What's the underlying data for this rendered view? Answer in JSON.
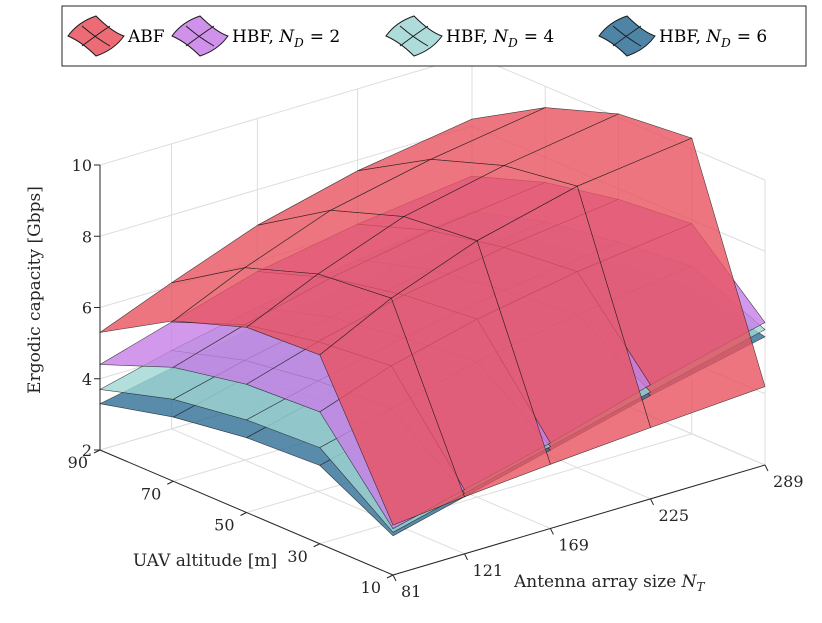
{
  "chart_data": {
    "type": "surface3d",
    "title": "",
    "xlabel": "Antenna array size N_T",
    "xlabel_main": "Antenna array size ",
    "xlabel_sym": "N",
    "xlabel_sub": "T",
    "ylabel": "UAV altitude [m]",
    "zlabel": "Ergodic capacity [Gbps]",
    "x_ticks": [
      81,
      121,
      169,
      225,
      289
    ],
    "x_tick_labels": [
      "81",
      "121",
      "169",
      "225",
      "289"
    ],
    "y_ticks": [
      10,
      30,
      50,
      70,
      90
    ],
    "y_tick_labels": [
      "10",
      "30",
      "50",
      "70",
      "90"
    ],
    "z_ticks": [
      2,
      4,
      6,
      8,
      10
    ],
    "z_tick_labels": [
      "2",
      "4",
      "6",
      "8",
      "10"
    ],
    "zlim": [
      2,
      10
    ],
    "grid": true,
    "legend_position": "top",
    "series": [
      {
        "name": "ABF",
        "label_text": "ABF",
        "label_math": "",
        "color": "#e8525f",
        "points": [
          {
            "x": 81,
            "y": 90,
            "z": 5.3
          },
          {
            "x": 121,
            "y": 90,
            "z": 6.1
          },
          {
            "x": 169,
            "y": 90,
            "z": 7.0
          },
          {
            "x": 225,
            "y": 90,
            "z": 7.7
          },
          {
            "x": 289,
            "y": 90,
            "z": 8.2
          },
          {
            "x": 81,
            "y": 70,
            "z": 6.5
          },
          {
            "x": 121,
            "y": 70,
            "z": 7.4
          },
          {
            "x": 169,
            "y": 70,
            "z": 8.3
          },
          {
            "x": 225,
            "y": 70,
            "z": 8.9
          },
          {
            "x": 289,
            "y": 70,
            "z": 9.4
          },
          {
            "x": 81,
            "y": 50,
            "z": 7.2
          },
          {
            "x": 121,
            "y": 50,
            "z": 8.1
          },
          {
            "x": 169,
            "y": 50,
            "z": 9.0
          },
          {
            "x": 225,
            "y": 50,
            "z": 9.6
          },
          {
            "x": 289,
            "y": 50,
            "z": 10.1
          },
          {
            "x": 81,
            "y": 30,
            "z": 7.3
          },
          {
            "x": 121,
            "y": 30,
            "z": 8.3
          },
          {
            "x": 169,
            "y": 30,
            "z": 9.2
          },
          {
            "x": 225,
            "y": 30,
            "z": 9.9
          },
          {
            "x": 289,
            "y": 30,
            "z": 10.3
          },
          {
            "x": 81,
            "y": 10,
            "z": 3.4
          },
          {
            "x": 121,
            "y": 10,
            "z": 3.6
          },
          {
            "x": 169,
            "y": 10,
            "z": 3.8
          },
          {
            "x": 225,
            "y": 10,
            "z": 4.0
          },
          {
            "x": 289,
            "y": 10,
            "z": 4.2
          }
        ]
      },
      {
        "name": "HBF, N_D = 2",
        "label_text": "HBF, ",
        "label_math": "= 2",
        "color": "#c77ee6",
        "points": [
          {
            "x": 81,
            "y": 90,
            "z": 4.4
          },
          {
            "x": 121,
            "y": 90,
            "z": 5.0
          },
          {
            "x": 169,
            "y": 90,
            "z": 5.7
          },
          {
            "x": 225,
            "y": 90,
            "z": 6.2
          },
          {
            "x": 289,
            "y": 90,
            "z": 6.6
          },
          {
            "x": 81,
            "y": 70,
            "z": 5.2
          },
          {
            "x": 121,
            "y": 70,
            "z": 5.8
          },
          {
            "x": 169,
            "y": 70,
            "z": 6.4
          },
          {
            "x": 225,
            "y": 70,
            "z": 6.9
          },
          {
            "x": 289,
            "y": 70,
            "z": 7.3
          },
          {
            "x": 81,
            "y": 50,
            "z": 5.6
          },
          {
            "x": 121,
            "y": 50,
            "z": 6.2
          },
          {
            "x": 169,
            "y": 50,
            "z": 6.8
          },
          {
            "x": 225,
            "y": 50,
            "z": 7.3
          },
          {
            "x": 289,
            "y": 50,
            "z": 7.7
          },
          {
            "x": 81,
            "y": 30,
            "z": 5.7
          },
          {
            "x": 121,
            "y": 30,
            "z": 6.4
          },
          {
            "x": 169,
            "y": 30,
            "z": 7.0
          },
          {
            "x": 225,
            "y": 30,
            "z": 7.5
          },
          {
            "x": 289,
            "y": 30,
            "z": 7.9
          },
          {
            "x": 81,
            "y": 10,
            "z": 3.3
          },
          {
            "x": 121,
            "y": 10,
            "z": 3.8
          },
          {
            "x": 169,
            "y": 10,
            "z": 4.4
          },
          {
            "x": 225,
            "y": 10,
            "z": 5.2
          },
          {
            "x": 289,
            "y": 10,
            "z": 6.0
          }
        ]
      },
      {
        "name": "HBF, N_D = 4",
        "label_text": "HBF, ",
        "label_math": "= 4",
        "color": "#9fd6d3",
        "points": [
          {
            "x": 81,
            "y": 90,
            "z": 3.7
          },
          {
            "x": 121,
            "y": 90,
            "z": 4.2
          },
          {
            "x": 169,
            "y": 90,
            "z": 4.7
          },
          {
            "x": 225,
            "y": 90,
            "z": 5.2
          },
          {
            "x": 289,
            "y": 90,
            "z": 5.6
          },
          {
            "x": 81,
            "y": 70,
            "z": 4.3
          },
          {
            "x": 121,
            "y": 70,
            "z": 4.8
          },
          {
            "x": 169,
            "y": 70,
            "z": 5.3
          },
          {
            "x": 225,
            "y": 70,
            "z": 5.8
          },
          {
            "x": 289,
            "y": 70,
            "z": 6.2
          },
          {
            "x": 81,
            "y": 50,
            "z": 4.6
          },
          {
            "x": 121,
            "y": 50,
            "z": 5.1
          },
          {
            "x": 169,
            "y": 50,
            "z": 5.6
          },
          {
            "x": 225,
            "y": 50,
            "z": 6.1
          },
          {
            "x": 289,
            "y": 50,
            "z": 6.5
          },
          {
            "x": 81,
            "y": 30,
            "z": 4.7
          },
          {
            "x": 121,
            "y": 30,
            "z": 5.2
          },
          {
            "x": 169,
            "y": 30,
            "z": 5.8
          },
          {
            "x": 225,
            "y": 30,
            "z": 6.3
          },
          {
            "x": 289,
            "y": 30,
            "z": 6.7
          },
          {
            "x": 81,
            "y": 10,
            "z": 3.2
          },
          {
            "x": 121,
            "y": 10,
            "z": 3.7
          },
          {
            "x": 169,
            "y": 10,
            "z": 4.3
          },
          {
            "x": 225,
            "y": 10,
            "z": 5.0
          },
          {
            "x": 289,
            "y": 10,
            "z": 5.8
          }
        ]
      },
      {
        "name": "HBF, N_D = 6",
        "label_text": "HBF, ",
        "label_math": "= 6",
        "color": "#2f6e96",
        "points": [
          {
            "x": 81,
            "y": 90,
            "z": 3.3
          },
          {
            "x": 121,
            "y": 90,
            "z": 3.7
          },
          {
            "x": 169,
            "y": 90,
            "z": 4.2
          },
          {
            "x": 225,
            "y": 90,
            "z": 4.6
          },
          {
            "x": 289,
            "y": 90,
            "z": 5.0
          },
          {
            "x": 81,
            "y": 70,
            "z": 3.8
          },
          {
            "x": 121,
            "y": 70,
            "z": 4.3
          },
          {
            "x": 169,
            "y": 70,
            "z": 4.8
          },
          {
            "x": 225,
            "y": 70,
            "z": 5.2
          },
          {
            "x": 289,
            "y": 70,
            "z": 5.6
          },
          {
            "x": 81,
            "y": 50,
            "z": 4.1
          },
          {
            "x": 121,
            "y": 50,
            "z": 4.6
          },
          {
            "x": 169,
            "y": 50,
            "z": 5.1
          },
          {
            "x": 225,
            "y": 50,
            "z": 5.5
          },
          {
            "x": 289,
            "y": 50,
            "z": 5.9
          },
          {
            "x": 81,
            "y": 30,
            "z": 4.2
          },
          {
            "x": 121,
            "y": 30,
            "z": 4.7
          },
          {
            "x": 169,
            "y": 30,
            "z": 5.2
          },
          {
            "x": 225,
            "y": 30,
            "z": 5.7
          },
          {
            "x": 289,
            "y": 30,
            "z": 6.1
          },
          {
            "x": 81,
            "y": 10,
            "z": 3.1
          },
          {
            "x": 121,
            "y": 10,
            "z": 3.6
          },
          {
            "x": 169,
            "y": 10,
            "z": 4.2
          },
          {
            "x": 225,
            "y": 10,
            "z": 4.9
          },
          {
            "x": 289,
            "y": 10,
            "z": 5.6
          }
        ]
      }
    ]
  }
}
